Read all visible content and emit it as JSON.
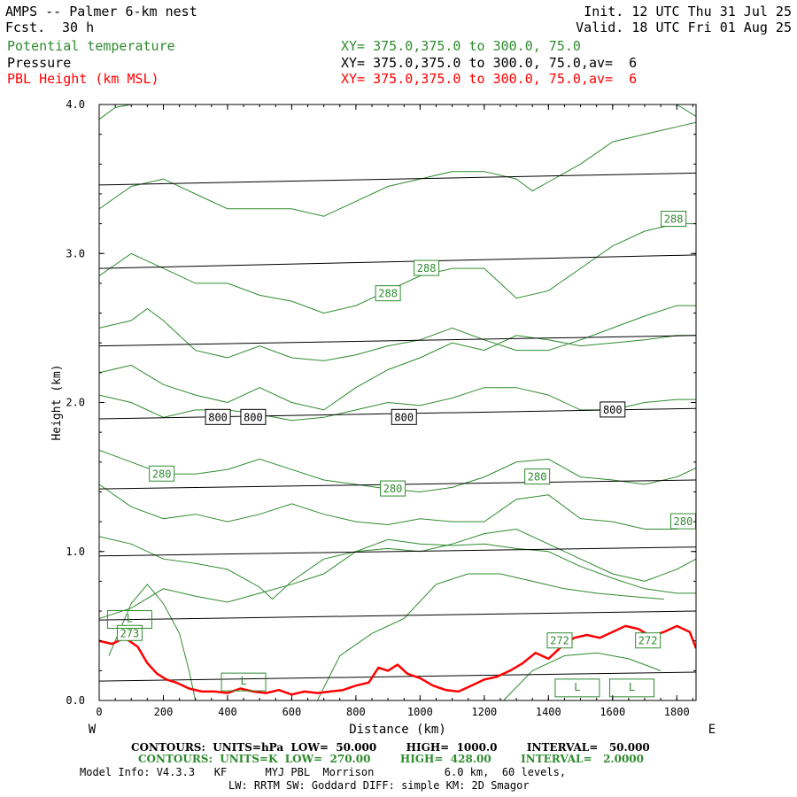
{
  "header": {
    "title": "AMPS -- Palmer 6-km nest",
    "fcst_label": "Fcst.",
    "fcst_value": "30 h",
    "init": "Init. 12 UTC Thu 31 Jul 25",
    "valid": "Valid. 18 UTC Fri 01 Aug 25",
    "field1": "Potential temperature",
    "field1_xy": "XY= 375.0,375.0 to 300.0, 75.0",
    "field2": "Pressure",
    "field2_xy": "XY= 375.0,375.0 to 300.0, 75.0,av=  6",
    "field3": "PBL Height (km MSL)",
    "field3_xy": "XY= 375.0,375.0 to 300.0, 75.0,av=  6"
  },
  "colors": {
    "theta": "#2e8b2e",
    "pressure": "#000000",
    "pbl": "#ff0000"
  },
  "chart_data": {
    "type": "line",
    "xlabel": "Distance (km)",
    "ylabel": "Height (km)",
    "xlim": [
      0,
      1860
    ],
    "ylim": [
      0,
      4.0
    ],
    "x_ticks": [
      0,
      200,
      400,
      600,
      800,
      1000,
      1200,
      1400,
      1600,
      1800
    ],
    "y_ticks": [
      "0.0",
      "1.0",
      "2.0",
      "3.0",
      "4.0"
    ],
    "west_label": "W",
    "east_label": "E",
    "pressure_contours": [
      {
        "x": [
          0,
          1860
        ],
        "y": [
          0.13,
          0.19
        ]
      },
      {
        "x": [
          0,
          1860
        ],
        "y": [
          0.54,
          0.6
        ]
      },
      {
        "x": [
          0,
          1860
        ],
        "y": [
          0.97,
          1.03
        ]
      },
      {
        "x": [
          0,
          1860
        ],
        "y": [
          1.42,
          1.48
        ]
      },
      {
        "x": [
          0,
          1860
        ],
        "y": [
          1.89,
          1.96
        ]
      },
      {
        "x": [
          0,
          1860
        ],
        "y": [
          2.38,
          2.45
        ]
      },
      {
        "x": [
          0,
          1860
        ],
        "y": [
          2.9,
          2.99
        ]
      },
      {
        "x": [
          0,
          1860
        ],
        "y": [
          3.46,
          3.54
        ]
      }
    ],
    "pressure_labels": [
      {
        "text": "800",
        "x": 370,
        "y": 1.9
      },
      {
        "text": "800",
        "x": 480,
        "y": 1.9
      },
      {
        "text": "800",
        "x": 950,
        "y": 1.9
      },
      {
        "text": "800",
        "x": 1600,
        "y": 1.95
      }
    ],
    "theta_contours": [
      {
        "x": [
          0,
          100,
          200,
          300,
          400,
          500,
          600,
          700,
          800,
          900,
          1000,
          1100,
          1200,
          1300,
          1400,
          1500,
          1600,
          1700,
          1800,
          1860
        ],
        "y": [
          0.55,
          0.62,
          0.75,
          0.7,
          0.66,
          0.72,
          0.78,
          0.85,
          1.0,
          1.08,
          1.05,
          1.04,
          1.05,
          1.02,
          1.0,
          0.9,
          0.82,
          0.75,
          0.72,
          0.72
        ]
      },
      {
        "x": [
          0,
          100,
          200,
          300,
          400,
          500,
          540,
          600,
          700,
          800,
          900,
          1000,
          1100,
          1200,
          1300,
          1400,
          1500,
          1600,
          1700,
          1800,
          1860
        ],
        "y": [
          1.1,
          1.05,
          0.95,
          0.92,
          0.88,
          0.76,
          0.68,
          0.8,
          0.95,
          1.0,
          1.02,
          1.0,
          1.05,
          1.12,
          1.15,
          1.05,
          0.95,
          0.85,
          0.8,
          0.88,
          0.95
        ]
      },
      {
        "x": [
          0,
          100,
          200,
          300,
          400,
          500,
          600,
          700,
          800,
          900,
          1000,
          1100,
          1200,
          1300,
          1400,
          1500,
          1600,
          1700,
          1800,
          1860
        ],
        "y": [
          1.45,
          1.3,
          1.22,
          1.25,
          1.2,
          1.25,
          1.32,
          1.25,
          1.2,
          1.18,
          1.22,
          1.2,
          1.2,
          1.35,
          1.38,
          1.22,
          1.2,
          1.15,
          1.15,
          1.2
        ]
      },
      {
        "x": [
          0,
          100,
          200,
          300,
          400,
          500,
          600,
          700,
          800,
          900,
          1000,
          1100,
          1200,
          1300,
          1400,
          1500,
          1600,
          1700,
          1800,
          1860
        ],
        "y": [
          1.68,
          1.6,
          1.52,
          1.52,
          1.55,
          1.62,
          1.55,
          1.48,
          1.45,
          1.42,
          1.4,
          1.43,
          1.5,
          1.6,
          1.62,
          1.5,
          1.48,
          1.45,
          1.5,
          1.56
        ]
      },
      {
        "x": [
          0,
          100,
          200,
          300,
          400,
          500,
          600,
          700,
          800,
          900,
          1000,
          1100,
          1200,
          1300,
          1400,
          1500,
          1600,
          1700,
          1800,
          1860
        ],
        "y": [
          2.05,
          2.0,
          1.9,
          1.95,
          1.95,
          1.92,
          1.88,
          1.9,
          1.95,
          2.0,
          1.98,
          2.03,
          2.1,
          2.1,
          2.05,
          1.95,
          1.95,
          2.0,
          2.02,
          2.02
        ]
      },
      {
        "x": [
          0,
          100,
          200,
          300,
          400,
          500,
          600,
          700,
          800,
          900,
          1000,
          1100,
          1200,
          1300,
          1400,
          1500,
          1600,
          1700,
          1800,
          1860
        ],
        "y": [
          2.2,
          2.25,
          2.12,
          2.05,
          2.0,
          2.1,
          2.0,
          1.95,
          2.1,
          2.22,
          2.3,
          2.4,
          2.35,
          2.45,
          2.42,
          2.38,
          2.4,
          2.42,
          2.45,
          2.45
        ]
      },
      {
        "x": [
          0,
          100,
          150,
          200,
          300,
          400,
          500,
          600,
          700,
          800,
          900,
          1000,
          1100,
          1200,
          1300,
          1400,
          1500,
          1600,
          1700,
          1800,
          1860
        ],
        "y": [
          2.5,
          2.55,
          2.63,
          2.55,
          2.35,
          2.3,
          2.38,
          2.3,
          2.28,
          2.32,
          2.38,
          2.42,
          2.5,
          2.42,
          2.35,
          2.35,
          2.42,
          2.5,
          2.58,
          2.65,
          2.65
        ]
      },
      {
        "x": [
          0,
          100,
          200,
          300,
          400,
          500,
          600,
          700,
          800,
          900,
          1000,
          1100,
          1200,
          1250,
          1300,
          1400,
          1500,
          1600,
          1700,
          1800,
          1860
        ],
        "y": [
          2.85,
          3.0,
          2.9,
          2.8,
          2.8,
          2.72,
          2.68,
          2.6,
          2.65,
          2.75,
          2.85,
          2.9,
          2.9,
          2.8,
          2.7,
          2.75,
          2.9,
          3.05,
          3.15,
          3.2,
          3.2
        ]
      },
      {
        "x": [
          0,
          100,
          200,
          300,
          400,
          500,
          600,
          700,
          800,
          900,
          1000,
          1100,
          1200,
          1300,
          1350,
          1400,
          1500,
          1600,
          1700,
          1800,
          1860
        ],
        "y": [
          3.3,
          3.45,
          3.5,
          3.4,
          3.3,
          3.3,
          3.3,
          3.25,
          3.35,
          3.45,
          3.5,
          3.55,
          3.55,
          3.5,
          3.42,
          3.48,
          3.6,
          3.75,
          3.8,
          3.85,
          3.88
        ]
      },
      {
        "x": [
          0,
          50,
          100,
          200,
          300,
          400,
          500,
          600,
          700,
          800,
          900,
          1000,
          1100,
          1200,
          1300,
          1400,
          1500,
          1600,
          1700,
          1800,
          1860
        ],
        "y": [
          3.9,
          3.98,
          4.0,
          4.0,
          4.0,
          4.0,
          4.0,
          4.0,
          4.0,
          4.0,
          4.0,
          4.0,
          4.0,
          4.0,
          4.0,
          4.0,
          4.0,
          4.0,
          4.0,
          4.0,
          3.92
        ]
      }
    ],
    "theta_low_contours": [
      {
        "x": [
          30,
          100,
          150,
          200,
          250,
          280,
          300
        ],
        "y": [
          0.3,
          0.65,
          0.78,
          0.65,
          0.45,
          0.2,
          0.0
        ]
      },
      {
        "x": [
          680,
          750,
          850,
          950,
          1050,
          1150,
          1250,
          1350,
          1450,
          1550,
          1650,
          1760
        ],
        "y": [
          0.0,
          0.3,
          0.45,
          0.55,
          0.78,
          0.85,
          0.85,
          0.8,
          0.75,
          0.72,
          0.7,
          0.68
        ]
      },
      {
        "x": [
          1260,
          1350,
          1450,
          1550,
          1650,
          1750
        ],
        "y": [
          0.0,
          0.2,
          0.3,
          0.32,
          0.28,
          0.2
        ]
      }
    ],
    "theta_labels": [
      {
        "text": "288",
        "x": 1790,
        "y": 3.23
      },
      {
        "text": "288",
        "x": 1020,
        "y": 2.9
      },
      {
        "text": "288",
        "x": 900,
        "y": 2.73
      },
      {
        "text": "280",
        "x": 195,
        "y": 1.52
      },
      {
        "text": "280",
        "x": 915,
        "y": 1.42
      },
      {
        "text": "280",
        "x": 1365,
        "y": 1.5
      },
      {
        "text": "280",
        "x": 1820,
        "y": 1.2
      },
      {
        "text": "272",
        "x": 1435,
        "y": 0.4
      },
      {
        "text": "272",
        "x": 1710,
        "y": 0.4
      },
      {
        "text": "273",
        "x": 95,
        "y": 0.45
      }
    ],
    "low_labels": [
      {
        "text": "L",
        "x": 95,
        "y": 0.55
      },
      {
        "text": "L",
        "x": 450,
        "y": 0.13
      },
      {
        "text": "L",
        "x": 1490,
        "y": 0.09
      },
      {
        "text": "L",
        "x": 1660,
        "y": 0.09
      }
    ],
    "pbl_height": {
      "x": [
        0,
        40,
        80,
        120,
        150,
        180,
        210,
        240,
        280,
        320,
        360,
        400,
        440,
        480,
        520,
        560,
        600,
        640,
        680,
        720,
        760,
        800,
        840,
        870,
        900,
        930,
        960,
        1000,
        1040,
        1080,
        1120,
        1160,
        1200,
        1240,
        1280,
        1320,
        1360,
        1400,
        1440,
        1480,
        1520,
        1560,
        1600,
        1640,
        1680,
        1720,
        1760,
        1800,
        1840,
        1860
      ],
      "y": [
        0.4,
        0.38,
        0.42,
        0.36,
        0.25,
        0.18,
        0.14,
        0.12,
        0.08,
        0.06,
        0.06,
        0.05,
        0.08,
        0.06,
        0.05,
        0.07,
        0.04,
        0.06,
        0.05,
        0.06,
        0.07,
        0.1,
        0.12,
        0.22,
        0.2,
        0.24,
        0.18,
        0.15,
        0.1,
        0.07,
        0.06,
        0.1,
        0.14,
        0.16,
        0.2,
        0.25,
        0.32,
        0.28,
        0.36,
        0.42,
        0.44,
        0.42,
        0.46,
        0.5,
        0.48,
        0.43,
        0.46,
        0.5,
        0.46,
        0.35
      ]
    }
  },
  "footer": {
    "line1": "CONTOURS:  UNITS=hPa  LOW=  50.000        HIGH=  1000.0        INTERVAL=   50.000",
    "line2": "CONTOURS:  UNITS=K  LOW=  270.00        HIGH=  428.00        INTERVAL=   2.0000",
    "line3": "Model Info: V4.3.3   KF      MYJ PBL  Morrison           6.0 km,  60 levels,",
    "line4": "LW: RRTM SW: Goddard DIFF: simple KM: 2D Smagor"
  }
}
